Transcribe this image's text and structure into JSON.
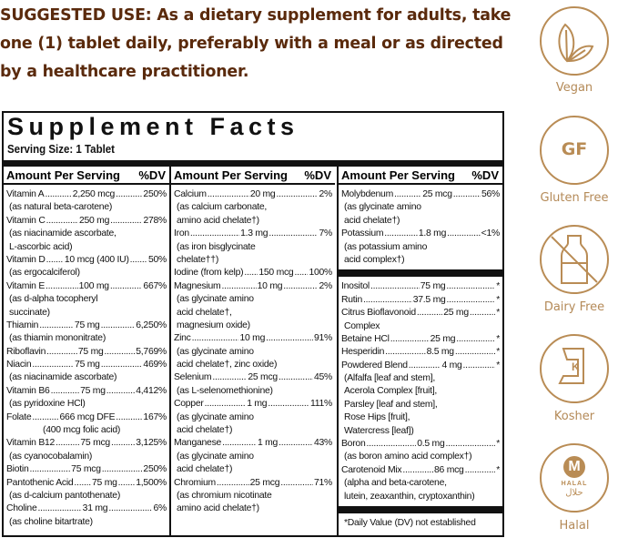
{
  "suggested_use": {
    "label": "SUGGESTED USE:",
    "text": " As a dietary supplement for adults, take one (1) tablet daily, preferably with a meal or as directed by a healthcare practitioner."
  },
  "facts": {
    "title": "Supplement Facts",
    "serving_size": "Serving Size: 1 Tablet",
    "header_amount": "Amount Per Serving",
    "header_dv": "%DV",
    "columns": [
      [
        {
          "name": "Vitamin A",
          "amount": "2,250 mcg",
          "dv": "250%",
          "sub": [
            "(as natural beta-carotene)"
          ]
        },
        {
          "name": "Vitamin C",
          "amount": "250 mg",
          "dv": "278%",
          "sub": [
            "(as niacinamide ascorbate,",
            "L-ascorbic acid)"
          ]
        },
        {
          "name": "Vitamin D",
          "amount": "10 mcg (400 IU)",
          "dv": "50%",
          "sub": [
            "(as ergocalciferol)"
          ]
        },
        {
          "name": "Vitamin E",
          "amount": "100 mg",
          "dv": "667%",
          "sub": [
            "(as d-alpha tocopheryl",
            "succinate)"
          ]
        },
        {
          "name": "Thiamin",
          "amount": "75 mg",
          "dv": "6,250%",
          "sub": [
            "(as thiamin mononitrate)"
          ]
        },
        {
          "name": "Riboflavin",
          "amount": "75 mg",
          "dv": "5,769%",
          "sub": []
        },
        {
          "name": "Niacin",
          "amount": "75 mg",
          "dv": "469%",
          "sub": [
            "(as niacinamide ascorbate)"
          ]
        },
        {
          "name": "Vitamin B6",
          "amount": "75 mg",
          "dv": "4,412%",
          "sub": [
            "(as pyridoxine HCl)"
          ]
        },
        {
          "name": "Folate",
          "amount": "666 mcg DFE",
          "dv": "167%",
          "sub_center": [
            "(400 mcg folic acid)"
          ]
        },
        {
          "name": "Vitamin B12",
          "amount": "75 mcg",
          "dv": "3,125%",
          "sub": [
            "(as cyanocobalamin)"
          ]
        },
        {
          "name": "Biotin",
          "amount": "75 mcg",
          "dv": "250%",
          "sub": []
        },
        {
          "name": "Pantothenic Acid",
          "amount": "75 mg",
          "dv": "1,500%",
          "sub": [
            "(as d-calcium pantothenate)"
          ]
        },
        {
          "name": "Choline",
          "amount": "31 mg",
          "dv": "6%",
          "sub": [
            "(as choline bitartrate)"
          ]
        }
      ],
      [
        {
          "name": "Calcium",
          "amount": "20 mg",
          "dv": "2%",
          "sub": [
            "(as calcium carbonate,",
            "amino acid chelate†)"
          ]
        },
        {
          "name": "Iron",
          "amount": "1.3 mg",
          "dv": "7%",
          "sub": [
            "(as iron bisglycinate",
            "chelate††)"
          ]
        },
        {
          "name": "Iodine (from kelp)",
          "amount": "150 mcg",
          "dv": "100%",
          "sub": []
        },
        {
          "name": "Magnesium",
          "amount": "10 mg",
          "dv": "2%",
          "sub": [
            "(as glycinate amino",
            "acid chelate†,",
            "magnesium oxide)"
          ]
        },
        {
          "name": "Zinc",
          "amount": "10 mg",
          "dv": "91%",
          "sub": [
            "(as glycinate amino",
            "acid chelate†, zinc oxide)"
          ]
        },
        {
          "name": "Selenium",
          "amount": "25 mcg",
          "dv": "45%",
          "sub": [
            "(as L-selenomethionine)"
          ]
        },
        {
          "name": "Copper",
          "amount": "1 mg",
          "dv": "111%",
          "sub": [
            "(as glycinate amino",
            "acid chelate†)"
          ]
        },
        {
          "name": "Manganese",
          "amount": "1 mg",
          "dv": "43%",
          "sub": [
            "(as glycinate amino",
            "acid chelate†)"
          ]
        },
        {
          "name": "Chromium",
          "amount": "25 mcg",
          "dv": "71%",
          "sub": [
            "(as chromium nicotinate",
            "amino acid chelate†)"
          ]
        }
      ],
      [
        {
          "name": "Molybdenum",
          "amount": "25 mcg",
          "dv": "56%",
          "sub": [
            "(as glycinate amino",
            "acid chelate†)"
          ]
        },
        {
          "name": "Potassium",
          "amount": "1.8 mg",
          "dv": "<1%",
          "sub": [
            "(as potassium amino",
            "acid complex†)"
          ]
        },
        {
          "bar": true
        },
        {
          "name": "Inositol",
          "amount": "75 mg",
          "dv": "*",
          "sub": []
        },
        {
          "name": "Rutin",
          "amount": "37.5 mg",
          "dv": "*",
          "sub": []
        },
        {
          "name": "Citrus Bioflavonoid",
          "amount": "25 mg",
          "dv": "*",
          "sub": [
            "Complex"
          ]
        },
        {
          "name": "Betaine HCl",
          "amount": "25 mg",
          "dv": "*",
          "sub": []
        },
        {
          "name": "Hesperidin",
          "amount": "8.5 mg",
          "dv": "*",
          "sub": []
        },
        {
          "name": "Powdered Blend",
          "amount": "4 mg",
          "dv": "*",
          "sub": [
            "(Alfalfa [leaf and stem],",
            "Acerola Complex [fruit],",
            "Parsley [leaf and stem],",
            "Rose Hips [fruit],",
            "Watercress [leaf])"
          ]
        },
        {
          "name": "Boron",
          "amount": "0.5 mg",
          "dv": "*",
          "sub": [
            "(as boron amino acid complex†)"
          ]
        },
        {
          "name": "Carotenoid Mix",
          "amount": "86 mcg",
          "dv": "*",
          "sub": [
            "(alpha and beta-carotene,",
            "lutein, zeaxanthin, cryptoxanthin)"
          ]
        },
        {
          "bar": true
        },
        {
          "note": "*Daily Value (DV) not established"
        }
      ]
    ]
  },
  "badges": [
    {
      "label": "Vegan",
      "icon": "leaf-icon"
    },
    {
      "label": "Gluten Free",
      "icon": "gf-icon",
      "text": "GF"
    },
    {
      "label": "Dairy Free",
      "icon": "milk-bottle-crossed-icon"
    },
    {
      "label": "Kosher",
      "icon": "kosher-k-icon",
      "text": "K"
    },
    {
      "label": "Halal",
      "icon": "halal-m-icon",
      "text": "M",
      "subtext": "HALAL",
      "arabic": "حلال"
    }
  ],
  "colors": {
    "heading": "#5a2a0c",
    "badge": "#b98c55",
    "ink": "#111111"
  }
}
